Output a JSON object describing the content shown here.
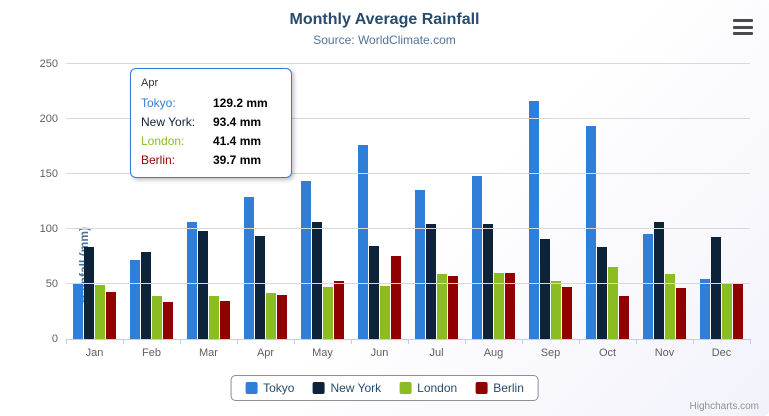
{
  "chart_data": {
    "type": "bar",
    "title": "Monthly Average Rainfall",
    "subtitle": "Source: WorldClimate.com",
    "xlabel": "",
    "ylabel": "Rainfall (mm)",
    "ylim": [
      0,
      250
    ],
    "ytick_interval": 50,
    "grid": true,
    "legend_position": "bottom",
    "categories": [
      "Jan",
      "Feb",
      "Mar",
      "Apr",
      "May",
      "Jun",
      "Jul",
      "Aug",
      "Sep",
      "Oct",
      "Nov",
      "Dec"
    ],
    "series": [
      {
        "name": "Tokyo",
        "color": "#2f7ed8",
        "values": [
          49.9,
          71.5,
          106.4,
          129.2,
          144.0,
          176.0,
          135.6,
          148.5,
          216.4,
          194.1,
          95.6,
          54.4
        ]
      },
      {
        "name": "New York",
        "color": "#0d233a",
        "values": [
          83.6,
          78.8,
          98.5,
          93.4,
          106.0,
          84.5,
          105.0,
          104.3,
          91.2,
          83.5,
          106.6,
          92.3
        ]
      },
      {
        "name": "London",
        "color": "#8bbc21",
        "values": [
          48.9,
          38.8,
          39.3,
          41.4,
          47.0,
          48.3,
          59.0,
          59.6,
          52.4,
          65.2,
          59.3,
          51.2
        ]
      },
      {
        "name": "Berlin",
        "color": "#910000",
        "values": [
          42.4,
          33.2,
          34.5,
          39.7,
          52.6,
          75.5,
          57.4,
          60.4,
          47.6,
          39.1,
          46.8,
          51.1
        ]
      }
    ]
  },
  "tooltip": {
    "header": "Apr",
    "rows": [
      {
        "name": "Tokyo",
        "value": "129.2 mm",
        "color": "#2f7ed8"
      },
      {
        "name": "New York",
        "value": "93.4 mm",
        "color": "#0d233a"
      },
      {
        "name": "London",
        "value": "41.4 mm",
        "color": "#8bbc21"
      },
      {
        "name": "Berlin",
        "value": "39.7 mm",
        "color": "#910000"
      }
    ]
  },
  "credits": "Highcharts.com"
}
